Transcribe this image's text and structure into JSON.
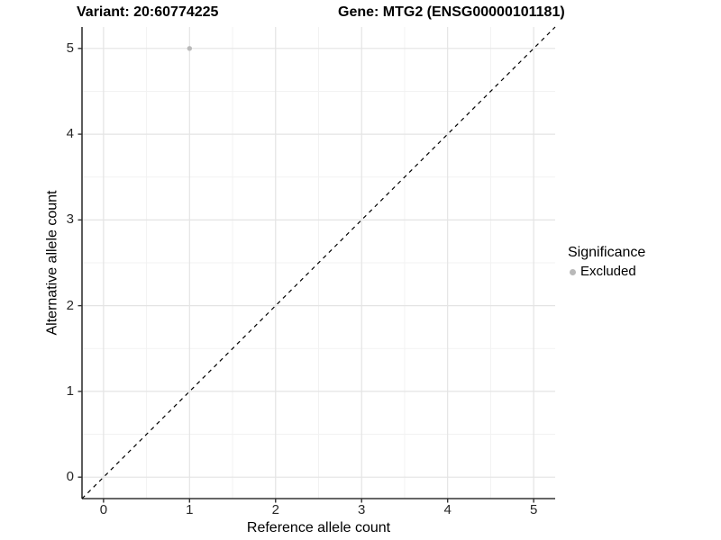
{
  "titles": {
    "variant": "Variant: 20:60774225",
    "gene": "Gene: MTG2 (ENSG00000101181)"
  },
  "chart_data": {
    "type": "scatter",
    "titles": [
      "Variant: 20:60774225",
      "Gene: MTG2 (ENSG00000101181)"
    ],
    "xlabel": "Reference allele count",
    "ylabel": "Alternative allele count",
    "xlim": [
      0,
      5
    ],
    "ylim": [
      0,
      5
    ],
    "expansion": 0.25,
    "x_ticks": [
      0,
      1,
      2,
      3,
      4,
      5
    ],
    "y_ticks": [
      0,
      1,
      2,
      3,
      4,
      5
    ],
    "x_minor": [
      0.5,
      1.5,
      2.5,
      3.5,
      4.5
    ],
    "y_minor": [
      0.5,
      1.5,
      2.5,
      3.5,
      4.5
    ],
    "grid": true,
    "legend_position": "right",
    "series": [
      {
        "name": "Excluded",
        "color": "#b9b9b9",
        "points": [
          {
            "x": 1,
            "y": 5
          }
        ]
      }
    ],
    "reference_line": {
      "slope": 1,
      "intercept": 0,
      "style": "dashed",
      "color": "#000000"
    }
  },
  "legend": {
    "title": "Significance",
    "items": [
      {
        "label": "Excluded",
        "color": "#b9b9b9"
      }
    ]
  },
  "colors": {
    "background": "#ffffff",
    "grid_major": "#e4e4e4",
    "grid_minor": "#f2f2f2",
    "axis_line": "#333333",
    "tick_mark": "#333333",
    "tick_text": "#262626",
    "title_text": "#000000",
    "point": "#b9b9b9"
  }
}
